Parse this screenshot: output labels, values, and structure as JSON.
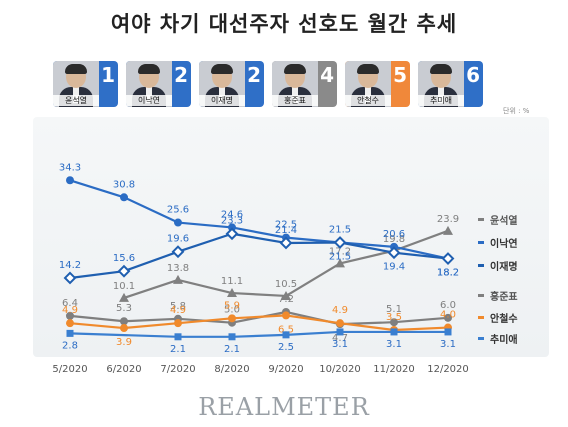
{
  "title": "여야 차기 대선주자 선호도 월간 추세",
  "unit_label": "단위 : %",
  "logo": "REALMETER",
  "candidates": [
    {
      "name": "윤석열",
      "rank": "1",
      "card_color": "#2f6fc7"
    },
    {
      "name": "이낙연",
      "rank": "2",
      "card_color": "#2f6fc7"
    },
    {
      "name": "이재명",
      "rank": "2",
      "card_color": "#2f6fc7"
    },
    {
      "name": "홍준표",
      "rank": "4",
      "card_color": "#8a8a8a"
    },
    {
      "name": "안철수",
      "rank": "5",
      "card_color": "#f0883a"
    },
    {
      "name": "추미애",
      "rank": "6",
      "card_color": "#2f6fc7"
    }
  ],
  "chart_data": {
    "type": "line",
    "categories": [
      "5/2020",
      "6/2020",
      "7/2020",
      "8/2020",
      "9/2020",
      "10/2020",
      "11/2020",
      "12/2020"
    ],
    "series": [
      {
        "name": "윤석열",
        "color": "#808080",
        "marker": "triangle",
        "values": [
          null,
          10.1,
          13.8,
          11.1,
          10.5,
          17.2,
          19.8,
          23.9
        ]
      },
      {
        "name": "이낙연",
        "color": "#2b6cc4",
        "marker": "circle",
        "values": [
          34.3,
          30.8,
          25.6,
          24.6,
          22.5,
          21.5,
          20.6,
          18.2
        ]
      },
      {
        "name": "이재명",
        "color": "#1f5fb0",
        "marker": "diamond",
        "values": [
          14.2,
          15.6,
          19.6,
          23.3,
          21.4,
          21.5,
          19.4,
          18.2
        ]
      },
      {
        "name": "홍준표",
        "color": "#7f7f7f",
        "marker": "circle",
        "values": [
          6.4,
          5.3,
          5.8,
          5.0,
          7.2,
          4.7,
          5.1,
          6.0
        ]
      },
      {
        "name": "안철수",
        "color": "#f08a2c",
        "marker": "circle",
        "values": [
          4.9,
          3.9,
          4.9,
          5.9,
          6.5,
          4.9,
          3.5,
          4.0
        ]
      },
      {
        "name": "추미애",
        "color": "#3a7fd0",
        "marker": "square",
        "values": [
          2.8,
          null,
          2.1,
          2.1,
          2.5,
          3.1,
          3.1,
          3.1
        ]
      }
    ],
    "ylim": [
      0,
      36
    ],
    "legend_position": "right",
    "grid": false
  }
}
